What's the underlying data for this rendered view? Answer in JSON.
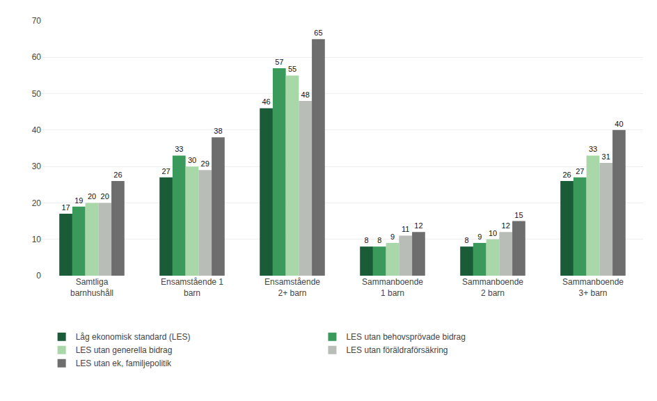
{
  "chart_data": {
    "type": "bar",
    "categories": [
      "Samtliga\nbarnhushåll",
      "Ensamstående 1\nbarn",
      "Ensamstående\n2+ barn",
      "Sammanboende\n1 barn",
      "Sammanboende\n2 barn",
      "Sammanboende\n3+ barn"
    ],
    "series": [
      {
        "name": "Låg ekonomisk standard (LES)",
        "color": "#1a5c38",
        "values": [
          17,
          27,
          46,
          8,
          8,
          26
        ]
      },
      {
        "name": "LES utan behovsprövade bidrag",
        "color": "#3a9a5c",
        "values": [
          19,
          33,
          57,
          8,
          9,
          27
        ]
      },
      {
        "name": "LES utan generella bidrag",
        "color": "#a8d8a8",
        "values": [
          20,
          30,
          55,
          9,
          10,
          33
        ]
      },
      {
        "name": "LES utan föräldraförsäkring",
        "color": "#b8bdb8",
        "values": [
          20,
          29,
          48,
          11,
          12,
          31
        ]
      },
      {
        "name": "LES utan ek, familjepolitik",
        "color": "#6e6e6e",
        "values": [
          26,
          38,
          65,
          12,
          15,
          40
        ]
      }
    ],
    "ylim": [
      0,
      70
    ],
    "yticks": [
      0,
      10,
      20,
      30,
      40,
      50,
      60,
      70
    ],
    "grid": true,
    "legend": "bottom",
    "data_labels": true
  }
}
